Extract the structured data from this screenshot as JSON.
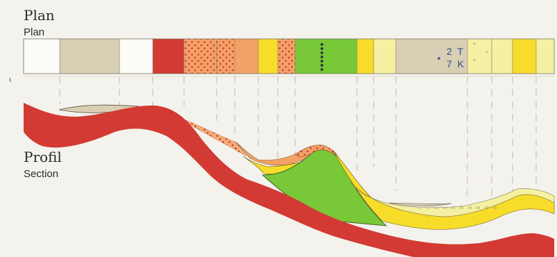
{
  "titles": {
    "plan_de": "Plan",
    "plan_en": "Plan",
    "section_de": "Profil",
    "section_en": "Section"
  },
  "annotations": {
    "line1": "2 T",
    "line2": "7 K"
  },
  "colors": {
    "background": "#f3f2ec",
    "white_unit": "#fbfbf7",
    "taupe_unit": "#d8cfb4",
    "red_unit": "#d23a33",
    "orange_dotted_unit": "#f0a46a",
    "orange_unit": "#f2a266",
    "yellow_unit": "#f8dc2a",
    "green_unit": "#78c838",
    "pale_yellow_unit": "#f5f0a2",
    "dot_red": "#d6322e",
    "dot_dark": "#2d3a3a",
    "annotation_blue": "#2f4e8a",
    "guide_line": "#b0aa98"
  },
  "map_strip_units": [
    {
      "unit": "white",
      "pattern": "none"
    },
    {
      "unit": "taupe",
      "pattern": "none"
    },
    {
      "unit": "white",
      "pattern": "none"
    },
    {
      "unit": "red",
      "pattern": "none"
    },
    {
      "unit": "orange",
      "pattern": "red-dots"
    },
    {
      "unit": "orange",
      "pattern": "red-dots"
    },
    {
      "unit": "orange",
      "pattern": "none"
    },
    {
      "unit": "yellow",
      "pattern": "none"
    },
    {
      "unit": "orange",
      "pattern": "red-dots"
    },
    {
      "unit": "green",
      "pattern": "dark-dots-vertical"
    },
    {
      "unit": "yellow",
      "pattern": "none"
    },
    {
      "unit": "pale_yellow",
      "pattern": "none"
    },
    {
      "unit": "taupe",
      "pattern": "annotation"
    },
    {
      "unit": "pale_yellow",
      "pattern": "tick-marks"
    },
    {
      "unit": "pale_yellow",
      "pattern": "none"
    },
    {
      "unit": "yellow",
      "pattern": "none"
    },
    {
      "unit": "pale_yellow",
      "pattern": "none"
    }
  ]
}
